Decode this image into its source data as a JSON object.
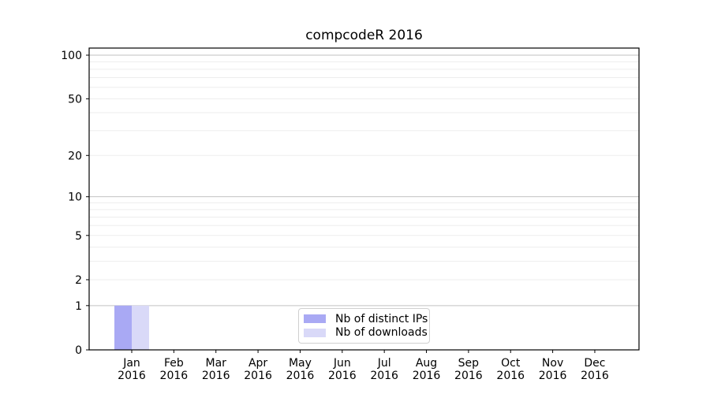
{
  "chart_data": {
    "type": "bar",
    "title": "compcodeR 2016",
    "categories": [
      "Jan",
      "Feb",
      "Mar",
      "Apr",
      "May",
      "Jun",
      "Jul",
      "Aug",
      "Sep",
      "Oct",
      "Nov",
      "Dec"
    ],
    "x_tick_second_line": "2016",
    "series": [
      {
        "name": "Nb of distinct IPs",
        "color": "#a9a9f4",
        "values": [
          1,
          0,
          0,
          0,
          0,
          0,
          0,
          0,
          0,
          0,
          0,
          0
        ]
      },
      {
        "name": "Nb of downloads",
        "color": "#d9d9f8",
        "values": [
          1,
          0,
          0,
          0,
          0,
          0,
          0,
          0,
          0,
          0,
          0,
          0
        ]
      }
    ],
    "y_axis": {
      "scale": "log1p",
      "ylim": [
        0,
        100
      ],
      "tick_values": [
        0,
        1,
        2,
        5,
        10,
        20,
        50,
        100
      ],
      "gridlines": {
        "major": [
          1,
          10,
          100
        ],
        "minor": [
          2,
          3,
          4,
          5,
          6,
          7,
          8,
          9,
          20,
          30,
          40,
          50,
          60,
          70,
          80,
          90
        ]
      }
    },
    "legend_position": "bottom-center",
    "xlabel": "",
    "ylabel": ""
  }
}
